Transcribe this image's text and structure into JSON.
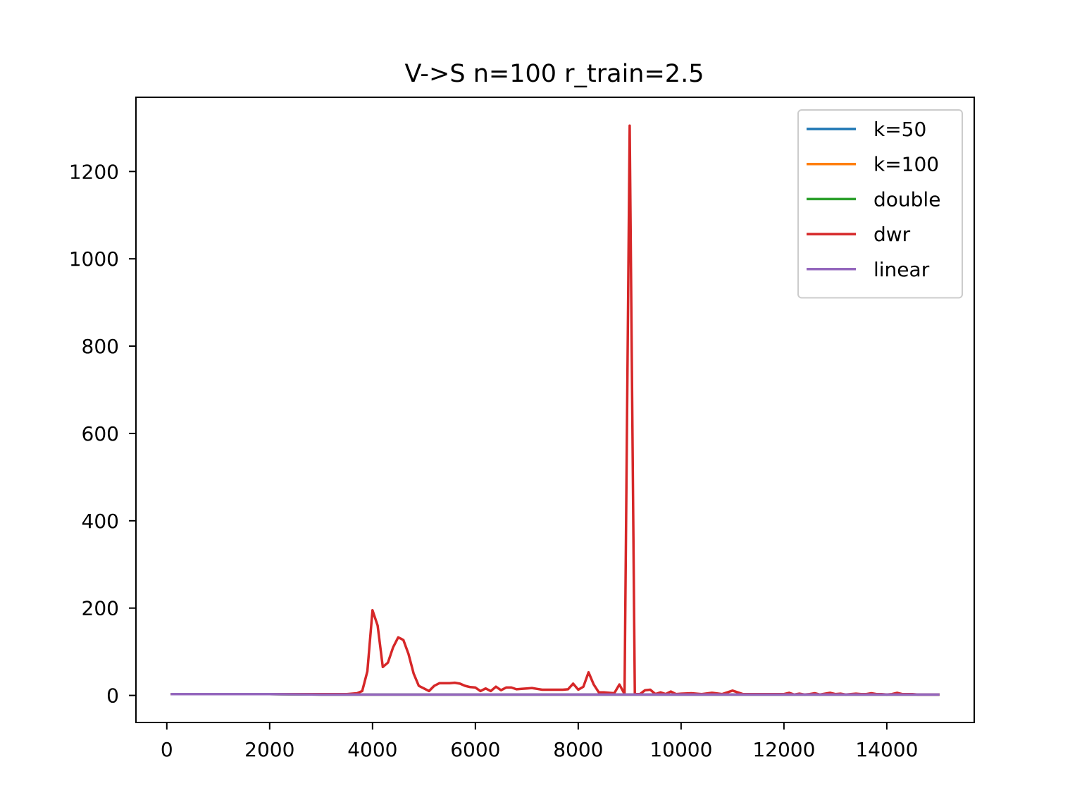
{
  "chart_data": {
    "type": "line",
    "title": "V->S n=100 r_train=2.5",
    "xlabel": "",
    "ylabel": "",
    "xlim": [
      -600,
      15700
    ],
    "ylim": [
      -62,
      1370
    ],
    "xticks": [
      0,
      2000,
      4000,
      6000,
      8000,
      10000,
      12000,
      14000
    ],
    "yticks": [
      0,
      200,
      400,
      600,
      800,
      1000,
      1200
    ],
    "grid": false,
    "legend_position": "top-right",
    "series": [
      {
        "name": "k=50",
        "color": "#1f77b4",
        "x": [
          100,
          1000,
          2000,
          3000,
          4000,
          5000,
          6000,
          7000,
          8000,
          9000,
          10000,
          11000,
          12000,
          13000,
          14000,
          15000
        ],
        "values": [
          3,
          3,
          3,
          2,
          2,
          2,
          2,
          2,
          2,
          2,
          2,
          2,
          2,
          2,
          2,
          2
        ]
      },
      {
        "name": "k=100",
        "color": "#ff7f0e",
        "x": [
          100,
          1000,
          2000,
          3000,
          4000,
          5000,
          6000,
          7000,
          8000,
          9000,
          10000,
          11000,
          12000,
          13000,
          14000,
          15000
        ],
        "values": [
          3,
          3,
          3,
          2,
          2,
          2,
          2,
          2,
          2,
          2,
          2,
          2,
          2,
          2,
          2,
          2
        ]
      },
      {
        "name": "double",
        "color": "#2ca02c",
        "x": [
          100,
          1000,
          2000,
          3000,
          4000,
          5000,
          6000,
          7000,
          8000,
          9000,
          10000,
          11000,
          12000,
          13000,
          14000,
          15000
        ],
        "values": [
          3,
          3,
          3,
          2,
          2,
          2,
          2,
          2,
          2,
          2,
          2,
          2,
          2,
          2,
          2,
          2
        ]
      },
      {
        "name": "dwr",
        "color": "#d62728",
        "x": [
          100,
          500,
          1000,
          1500,
          2000,
          2500,
          3000,
          3500,
          3700,
          3800,
          3900,
          4000,
          4100,
          4200,
          4300,
          4400,
          4500,
          4600,
          4700,
          4800,
          4900,
          5000,
          5100,
          5200,
          5300,
          5400,
          5500,
          5600,
          5700,
          5800,
          5900,
          6000,
          6100,
          6200,
          6300,
          6400,
          6500,
          6600,
          6700,
          6800,
          6900,
          7000,
          7100,
          7200,
          7300,
          7400,
          7500,
          7600,
          7700,
          7800,
          7900,
          8000,
          8100,
          8200,
          8300,
          8400,
          8500,
          8600,
          8700,
          8800,
          8900,
          9000,
          9100,
          9200,
          9300,
          9400,
          9500,
          9600,
          9700,
          9800,
          9900,
          10000,
          10200,
          10400,
          10600,
          10800,
          11000,
          11200,
          11400,
          11600,
          11800,
          12000,
          12100,
          12200,
          12300,
          12400,
          12500,
          12600,
          12700,
          12800,
          12900,
          13000,
          13100,
          13200,
          13300,
          13400,
          13500,
          13600,
          13700,
          13800,
          13900,
          14000,
          14100,
          14200,
          14300,
          14400,
          14500,
          14600,
          14700,
          14800,
          14900,
          15000
        ],
        "values": [
          3,
          3,
          3,
          3,
          3,
          3,
          3,
          3,
          5,
          10,
          55,
          195,
          160,
          65,
          75,
          110,
          133,
          127,
          95,
          50,
          22,
          16,
          10,
          22,
          28,
          28,
          28,
          29,
          27,
          22,
          19,
          18,
          10,
          16,
          10,
          20,
          12,
          18,
          18,
          14,
          15,
          16,
          17,
          15,
          13,
          13,
          13,
          13,
          13,
          14,
          27,
          13,
          20,
          53,
          25,
          7,
          7,
          6,
          5,
          25,
          3,
          1305,
          3,
          3,
          12,
          13,
          3,
          7,
          3,
          9,
          3,
          4,
          5,
          3,
          6,
          3,
          11,
          3,
          3,
          3,
          3,
          3,
          6,
          2,
          4,
          2,
          3,
          5,
          2,
          4,
          6,
          3,
          4,
          2,
          3,
          4,
          3,
          3,
          5,
          3,
          3,
          2,
          3,
          6,
          3,
          3,
          3,
          2,
          2,
          2,
          2,
          2
        ]
      },
      {
        "name": "linear",
        "color": "#9467bd",
        "x": [
          100,
          500,
          1000,
          1500,
          2000,
          3000,
          4000,
          5000,
          6000,
          7000,
          8000,
          9000,
          10000,
          11000,
          12000,
          13000,
          14000,
          15000
        ],
        "values": [
          3,
          3,
          3,
          3,
          3,
          2,
          2,
          2,
          2,
          2,
          2,
          2,
          2,
          2,
          2,
          2,
          2,
          2
        ]
      }
    ]
  }
}
